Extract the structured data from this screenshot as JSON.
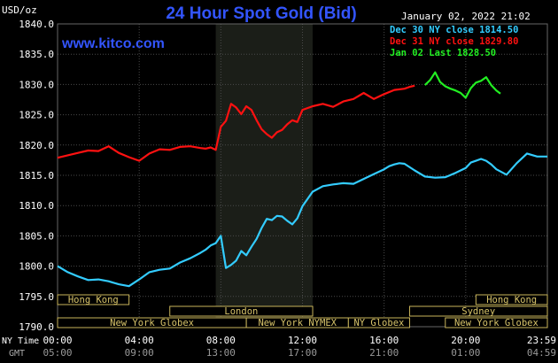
{
  "chart_data": {
    "type": "line",
    "title": "24 Hour Spot Gold (Bid)",
    "subtitle": "January 02, 2022 21:02",
    "watermark": "www.kitco.com",
    "ylabel": "USD/oz",
    "ylim": [
      1790,
      1840
    ],
    "yticks": [
      "1840.0",
      "1835.0",
      "1830.0",
      "1825.0",
      "1820.0",
      "1815.0",
      "1810.0",
      "1805.0",
      "1800.0",
      "1795.0",
      "1790.0"
    ],
    "x_hours": [
      0,
      24
    ],
    "x_ticks_ny": [
      "00:00",
      "04:00",
      "08:00",
      "12:00",
      "16:00",
      "20:00",
      "23:59"
    ],
    "x_ticks_gmt": [
      "05:00",
      "09:00",
      "13:00",
      "17:00",
      "21:00",
      "01:00",
      "04:59"
    ],
    "x_row_labels": [
      "NY Time",
      "GMT"
    ],
    "highlight_range_hours": [
      7.75,
      12.5
    ],
    "legend_placement": "top-right",
    "legend": [
      {
        "label": "Dec 30 NY close 1814.50",
        "color": "#33ccff"
      },
      {
        "label": "Dec 31 NY close 1829.80",
        "color": "#ff1111"
      },
      {
        "label": "Jan 02 Last 1828.50",
        "color": "#22ee22"
      }
    ],
    "series": [
      {
        "name": "Dec 30 NY close 1814.50",
        "color": "#33ccff",
        "x": [
          0,
          0.5,
          1,
          1.5,
          2,
          2.5,
          3,
          3.5,
          4,
          4.5,
          5,
          5.5,
          6,
          6.5,
          7,
          7.25,
          7.5,
          7.75,
          8,
          8.25,
          8.5,
          8.75,
          9,
          9.25,
          9.5,
          9.75,
          10,
          10.25,
          10.5,
          10.75,
          11,
          11.25,
          11.5,
          11.75,
          12,
          12.5,
          13,
          13.5,
          14,
          14.5,
          15,
          15.5,
          16,
          16.25,
          16.5,
          16.75,
          17,
          17.5,
          18,
          18.5,
          19,
          19.5,
          20,
          20.25,
          20.5,
          20.75,
          21,
          21.25,
          21.5,
          22,
          22.5,
          23,
          23.5,
          24
        ],
        "values": [
          1800.0,
          1799.0,
          1798.3,
          1797.7,
          1797.8,
          1797.5,
          1797.0,
          1796.7,
          1797.8,
          1799.0,
          1799.4,
          1799.6,
          1800.6,
          1801.3,
          1802.2,
          1802.7,
          1803.4,
          1803.8,
          1805.0,
          1799.7,
          1800.2,
          1800.9,
          1802.5,
          1801.8,
          1803.2,
          1804.5,
          1806.3,
          1807.8,
          1807.6,
          1808.3,
          1808.2,
          1807.5,
          1806.9,
          1807.9,
          1809.9,
          1812.3,
          1813.2,
          1813.5,
          1813.7,
          1813.6,
          1814.4,
          1815.2,
          1816.0,
          1816.5,
          1816.8,
          1817.0,
          1816.9,
          1815.8,
          1814.8,
          1814.6,
          1814.7,
          1815.4,
          1816.2,
          1817.1,
          1817.4,
          1817.7,
          1817.4,
          1816.8,
          1816.0,
          1815.1,
          1817.0,
          1818.6,
          1818.1,
          1818.1
        ]
      },
      {
        "name": "Dec 31 NY close 1829.80",
        "color": "#ff1111",
        "x": [
          0,
          0.5,
          1,
          1.5,
          2,
          2.5,
          3,
          3.5,
          4,
          4.5,
          5,
          5.5,
          6,
          6.5,
          7,
          7.25,
          7.5,
          7.75,
          8,
          8.25,
          8.5,
          8.75,
          9,
          9.25,
          9.5,
          9.75,
          10,
          10.25,
          10.5,
          10.75,
          11,
          11.25,
          11.5,
          11.75,
          12,
          12.5,
          13,
          13.5,
          14,
          14.5,
          15,
          15.5,
          16,
          16.5,
          17,
          17.25,
          17.5
        ],
        "values": [
          1817.9,
          1818.3,
          1818.7,
          1819.1,
          1819.0,
          1819.8,
          1818.7,
          1818.0,
          1817.4,
          1818.6,
          1819.3,
          1819.2,
          1819.7,
          1819.8,
          1819.5,
          1819.4,
          1819.6,
          1819.2,
          1823.0,
          1824.0,
          1826.8,
          1826.2,
          1825.1,
          1826.4,
          1825.8,
          1824.1,
          1822.6,
          1821.8,
          1821.2,
          1822.1,
          1822.5,
          1823.4,
          1824.1,
          1823.8,
          1825.8,
          1826.4,
          1826.8,
          1826.3,
          1827.2,
          1827.6,
          1828.6,
          1827.6,
          1828.4,
          1829.1,
          1829.3,
          1829.6,
          1829.8
        ]
      },
      {
        "name": "Jan 02 Last 1828.50",
        "color": "#22ee22",
        "x": [
          18,
          18.25,
          18.5,
          18.75,
          19,
          19.25,
          19.5,
          19.75,
          20,
          20.25,
          20.5,
          20.75,
          21,
          21.25,
          21.5,
          21.7
        ],
        "values": [
          1829.9,
          1830.7,
          1832.0,
          1830.4,
          1829.7,
          1829.3,
          1829.0,
          1828.6,
          1827.8,
          1829.4,
          1830.3,
          1830.6,
          1831.2,
          1829.9,
          1829.0,
          1828.5
        ]
      }
    ],
    "sessions": [
      {
        "label": "Hong Kong",
        "start": 0,
        "end": 3.5
      },
      {
        "label": "London",
        "start": 5.5,
        "end": 12.5
      },
      {
        "label": "New York Globex",
        "start": 0,
        "end": 9.25
      },
      {
        "label": "New York NYMEX",
        "start": 9.25,
        "end": 14.25
      },
      {
        "label": "NY Globex",
        "start": 14.25,
        "end": 17.25
      },
      {
        "label": "Hong Kong",
        "start": 20.5,
        "end": 24
      },
      {
        "label": "Sydney",
        "start": 17.25,
        "end": 24
      },
      {
        "label": "New York Globex",
        "start": 19,
        "end": 24
      }
    ]
  }
}
